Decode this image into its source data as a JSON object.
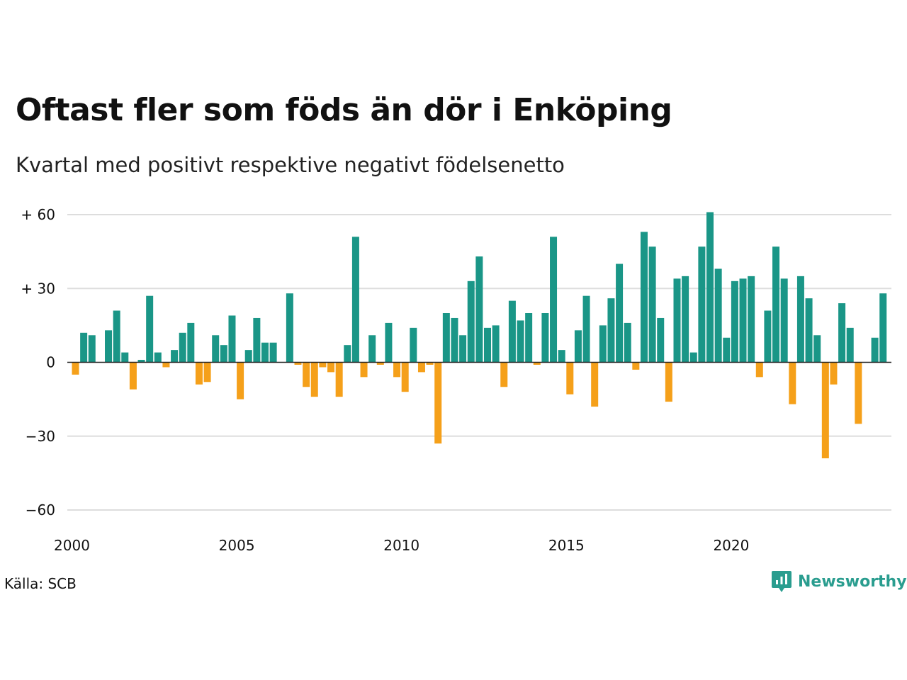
{
  "header": {
    "title": "Oftast fler som föds än dör i Enköping",
    "subtitle": "Kvartal med positivt respektive negativt födelsenetto"
  },
  "footer": {
    "source": "Källa: SCB",
    "brand": "Newsworthy"
  },
  "colors": {
    "positive": "#1a9687",
    "negative": "#f5a01a",
    "grid": "#dddddd",
    "brand": "#2a9d8f"
  },
  "chart_data": {
    "type": "bar",
    "title": "Oftast fler som föds än dör i Enköping",
    "subtitle": "Kvartal med positivt respektive negativt födelsenetto",
    "xlabel": "",
    "ylabel": "",
    "start_year": 2000,
    "periods_per_year": 4,
    "ylim": [
      -60,
      60
    ],
    "y_ticks": [
      {
        "value": 60,
        "label": "+ 60"
      },
      {
        "value": 30,
        "label": "+ 30"
      },
      {
        "value": 0,
        "label": "0"
      },
      {
        "value": -30,
        "label": "−30"
      },
      {
        "value": -60,
        "label": "−60"
      }
    ],
    "x_ticks": [
      {
        "year": 2000,
        "label": "2000"
      },
      {
        "year": 2005,
        "label": "2005"
      },
      {
        "year": 2010,
        "label": "2010"
      },
      {
        "year": 2015,
        "label": "2015"
      },
      {
        "year": 2020,
        "label": "2020"
      }
    ],
    "grid": true,
    "values": [
      -5,
      12,
      11,
      0,
      13,
      21,
      4,
      -11,
      1,
      27,
      4,
      -2,
      5,
      12,
      16,
      -9,
      -8,
      11,
      7,
      19,
      -15,
      5,
      18,
      8,
      8,
      0,
      28,
      -1,
      -10,
      -14,
      -2,
      -4,
      -14,
      7,
      51,
      -6,
      11,
      -1,
      16,
      -6,
      -12,
      14,
      -4,
      -1,
      -33,
      20,
      18,
      11,
      33,
      43,
      14,
      15,
      -10,
      25,
      17,
      20,
      -1,
      20,
      51,
      5,
      -13,
      13,
      27,
      -18,
      15,
      26,
      40,
      16,
      -3,
      53,
      47,
      18,
      -16,
      34,
      35,
      4,
      47,
      61,
      38,
      10,
      33,
      34,
      35,
      -6,
      21,
      47,
      34,
      -17,
      35,
      26,
      11,
      -39,
      -9,
      24,
      14,
      -25,
      0,
      10,
      28
    ]
  }
}
